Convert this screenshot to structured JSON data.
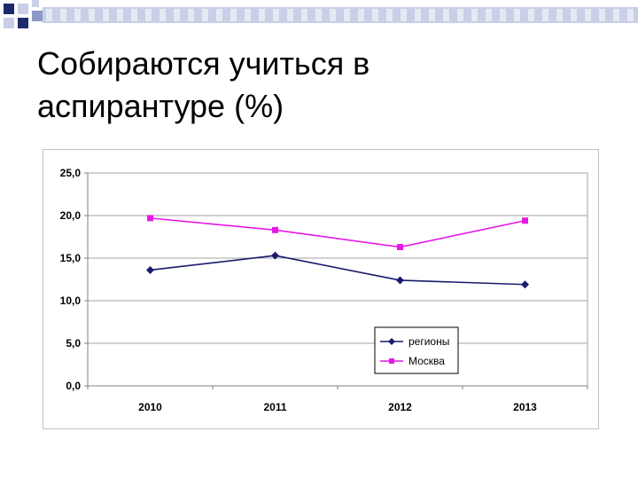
{
  "slide": {
    "title_line1": "Собираются учиться в",
    "title_line2": "аспирантуре (%)"
  },
  "chart_data": {
    "type": "line",
    "categories": [
      "2010",
      "2011",
      "2012",
      "2013"
    ],
    "series": [
      {
        "name": "регионы",
        "values": [
          13.6,
          15.3,
          12.4,
          11.9
        ],
        "color": "#1a1a6e",
        "marker": "diamond"
      },
      {
        "name": "Москва",
        "values": [
          19.7,
          18.3,
          16.3,
          19.4
        ],
        "color": "#e619e6",
        "marker": "square"
      }
    ],
    "y_ticks": [
      "0,0",
      "5,0",
      "10,0",
      "15,0",
      "20,0",
      "25,0"
    ],
    "ylim": [
      0,
      25
    ],
    "grid": true,
    "legend_position": "bottom-right-inside"
  },
  "colors": {
    "band_dark": "#1c2a6b",
    "band_light": "#c8cfe6",
    "band_mid": "#8d99c7"
  }
}
